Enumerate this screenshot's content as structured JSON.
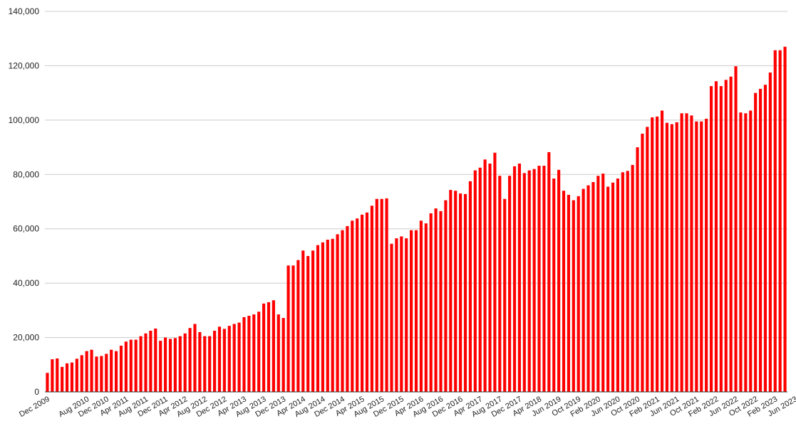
{
  "colors": {
    "bar": "#ff0000",
    "bar_edge": "#b00000",
    "grid": "#cccccc",
    "axis": "#333333"
  },
  "chart_data": {
    "type": "bar",
    "title": "",
    "xlabel": "",
    "ylabel": "",
    "ylim": [
      0,
      140000
    ],
    "yticks": [
      0,
      20000,
      40000,
      60000,
      80000,
      100000,
      120000,
      140000
    ],
    "ytick_labels": [
      "0",
      "20,000",
      "40,000",
      "60,000",
      "80,000",
      "100,000",
      "120,000",
      "140,000"
    ],
    "grid": true,
    "legend": "none",
    "x_tick_labels": [
      {
        "index": 0,
        "label": "Dec 2009"
      },
      {
        "index": 8,
        "label": "Aug 2010"
      },
      {
        "index": 12,
        "label": "Dec 2010"
      },
      {
        "index": 16,
        "label": "Apr 2011"
      },
      {
        "index": 20,
        "label": "Aug 2011"
      },
      {
        "index": 24,
        "label": "Dec 2011"
      },
      {
        "index": 28,
        "label": "Apr 2012"
      },
      {
        "index": 32,
        "label": "Aug 2012"
      },
      {
        "index": 36,
        "label": "Dec 2012"
      },
      {
        "index": 40,
        "label": "Apr 2013"
      },
      {
        "index": 44,
        "label": "Aug 2013"
      },
      {
        "index": 48,
        "label": "Dec 2013"
      },
      {
        "index": 52,
        "label": "Apr 2014"
      },
      {
        "index": 56,
        "label": "Aug 2014"
      },
      {
        "index": 60,
        "label": "Dec 2014"
      },
      {
        "index": 64,
        "label": "Apr 2015"
      },
      {
        "index": 68,
        "label": "Aug 2015"
      },
      {
        "index": 72,
        "label": "Dec 2015"
      },
      {
        "index": 76,
        "label": "Apr 2016"
      },
      {
        "index": 80,
        "label": "Aug 2016"
      },
      {
        "index": 84,
        "label": "Dec 2016"
      },
      {
        "index": 88,
        "label": "Apr 2017"
      },
      {
        "index": 92,
        "label": "Aug 2017"
      },
      {
        "index": 96,
        "label": "Dec 2017"
      },
      {
        "index": 100,
        "label": "Apr 2018"
      },
      {
        "index": 104,
        "label": "Jun 2019"
      },
      {
        "index": 108,
        "label": "Oct 2019"
      },
      {
        "index": 112,
        "label": "Feb 2020"
      },
      {
        "index": 116,
        "label": "Jun 2020"
      },
      {
        "index": 120,
        "label": "Oct 2020"
      },
      {
        "index": 124,
        "label": "Feb 2021"
      },
      {
        "index": 128,
        "label": "Jun 2021"
      },
      {
        "index": 132,
        "label": "Oct 2021"
      },
      {
        "index": 136,
        "label": "Feb 2022"
      },
      {
        "index": 140,
        "label": "Jun 2022"
      },
      {
        "index": 144,
        "label": "Oct 2022"
      },
      {
        "index": 148,
        "label": "Feb 2023"
      },
      {
        "index": 152,
        "label": "Jun 2023"
      }
    ],
    "values": [
      7000,
      12000,
      12300,
      9200,
      10500,
      10800,
      12200,
      13500,
      15000,
      15500,
      13000,
      13200,
      14000,
      15500,
      15000,
      17000,
      18500,
      19200,
      19200,
      20500,
      21500,
      22500,
      23300,
      18800,
      20000,
      19500,
      19800,
      20500,
      21500,
      23500,
      25000,
      22000,
      20500,
      20500,
      22500,
      24000,
      23200,
      24300,
      25000,
      25500,
      27500,
      28000,
      28500,
      29500,
      32500,
      33000,
      33700,
      28500,
      27200,
      46500,
      46500,
      48500,
      52000,
      50000,
      52000,
      54000,
      55000,
      56000,
      56300,
      58000,
      59500,
      61000,
      63000,
      63800,
      65200,
      66000,
      68500,
      71000,
      71000,
      71200,
      54500,
      56500,
      57200,
      56500,
      59500,
      59500,
      63000,
      62000,
      65700,
      67500,
      66500,
      70500,
      74300,
      74000,
      73000,
      72800,
      77500,
      81500,
      82500,
      85500,
      84000,
      88000,
      79500,
      71000,
      79500,
      83000,
      84000,
      80500,
      81500,
      82000,
      83200,
      83200,
      88200,
      78500,
      81700,
      74000,
      72500,
      70500,
      72000,
      74700,
      76000,
      77200,
      79500,
      80300,
      75500,
      77000,
      78500,
      80800,
      81300,
      83500,
      90000,
      95000,
      97500,
      101000,
      101300,
      103500,
      99000,
      98500,
      99200,
      102500,
      102500,
      101700,
      99500,
      99500,
      100500,
      112500,
      114300,
      112500,
      114800,
      116000,
      119800,
      102800,
      102500,
      103500,
      110000,
      111500,
      113000,
      117500,
      125700,
      125700,
      127000
    ]
  }
}
